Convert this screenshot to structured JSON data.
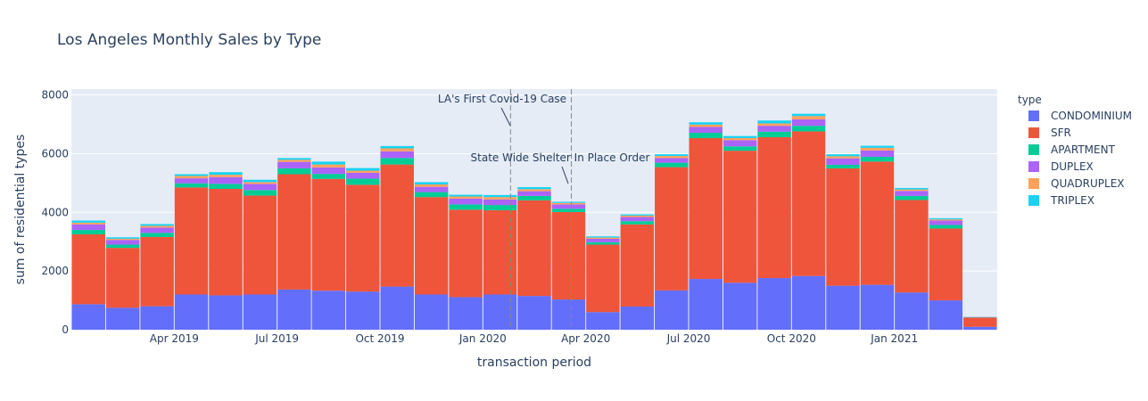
{
  "chart_data": {
    "type": "bar",
    "stacked": true,
    "title": "Los Angeles Monthly Sales by Type",
    "xlabel": "transaction period",
    "ylabel": "sum of residential types",
    "ylim": [
      0,
      8200
    ],
    "yticks": [
      0,
      2000,
      4000,
      6000,
      8000
    ],
    "grid": true,
    "legend_title": "type",
    "legend_position": "right",
    "plot_bg": "#e5ecf6",
    "categories": [
      "2019-01",
      "2019-02",
      "2019-03",
      "2019-04",
      "2019-05",
      "2019-06",
      "2019-07",
      "2019-08",
      "2019-09",
      "2019-10",
      "2019-11",
      "2019-12",
      "2020-01",
      "2020-02",
      "2020-03",
      "2020-04",
      "2020-05",
      "2020-06",
      "2020-07",
      "2020-08",
      "2020-09",
      "2020-10",
      "2020-11",
      "2020-12",
      "2021-01",
      "2021-02",
      "2021-03"
    ],
    "xtick_labels": [
      {
        "at": "2019-04",
        "label": "Apr 2019"
      },
      {
        "at": "2019-07",
        "label": "Jul 2019"
      },
      {
        "at": "2019-10",
        "label": "Oct 2019"
      },
      {
        "at": "2020-01",
        "label": "Jan 2020"
      },
      {
        "at": "2020-04",
        "label": "Apr 2020"
      },
      {
        "at": "2020-07",
        "label": "Jul 2020"
      },
      {
        "at": "2020-10",
        "label": "Oct 2020"
      },
      {
        "at": "2021-01",
        "label": "Jan 2021"
      }
    ],
    "series": [
      {
        "name": "CONDOMINIUM",
        "color": "#636efa",
        "values": [
          870,
          750,
          800,
          1200,
          1170,
          1200,
          1370,
          1330,
          1300,
          1470,
          1200,
          1110,
          1200,
          1150,
          1030,
          600,
          790,
          1340,
          1730,
          1600,
          1760,
          1830,
          1500,
          1530,
          1270,
          1000,
          100
        ]
      },
      {
        "name": "SFR",
        "color": "#ef553b",
        "values": [
          2380,
          2040,
          2360,
          3650,
          3630,
          3370,
          3930,
          3810,
          3640,
          4160,
          3320,
          2980,
          2870,
          3260,
          2980,
          2300,
          2800,
          4200,
          4800,
          4500,
          4800,
          4930,
          4000,
          4200,
          3150,
          2450,
          310
        ]
      },
      {
        "name": "APARTMENT",
        "color": "#00cc96",
        "values": [
          150,
          110,
          140,
          140,
          170,
          190,
          200,
          170,
          210,
          220,
          170,
          180,
          180,
          150,
          110,
          80,
          110,
          150,
          180,
          150,
          190,
          190,
          120,
          160,
          140,
          120,
          10
        ]
      },
      {
        "name": "DUPLEX",
        "color": "#ab63fa",
        "values": [
          190,
          160,
          180,
          170,
          230,
          210,
          220,
          220,
          200,
          230,
          180,
          200,
          190,
          160,
          150,
          120,
          140,
          160,
          200,
          210,
          200,
          220,
          220,
          220,
          170,
          150,
          10
        ]
      },
      {
        "name": "QUADRUPLEX",
        "color": "#ffa15a",
        "values": [
          60,
          40,
          60,
          80,
          80,
          60,
          70,
          100,
          70,
          100,
          80,
          70,
          80,
          70,
          50,
          40,
          50,
          70,
          80,
          70,
          80,
          110,
          70,
          90,
          50,
          40,
          5
        ]
      },
      {
        "name": "TRIPLEX",
        "color": "#19d3f3",
        "values": [
          70,
          50,
          60,
          60,
          90,
          80,
          60,
          100,
          90,
          80,
          80,
          60,
          70,
          70,
          40,
          40,
          40,
          60,
          80,
          70,
          100,
          80,
          70,
          70,
          50,
          40,
          5
        ]
      }
    ],
    "annotations": [
      {
        "text": "LA's First Covid-19 Case",
        "date": "2020-01-26"
      },
      {
        "text": "State Wide Shelter In Place Order",
        "date": "2020-03-19"
      }
    ]
  }
}
